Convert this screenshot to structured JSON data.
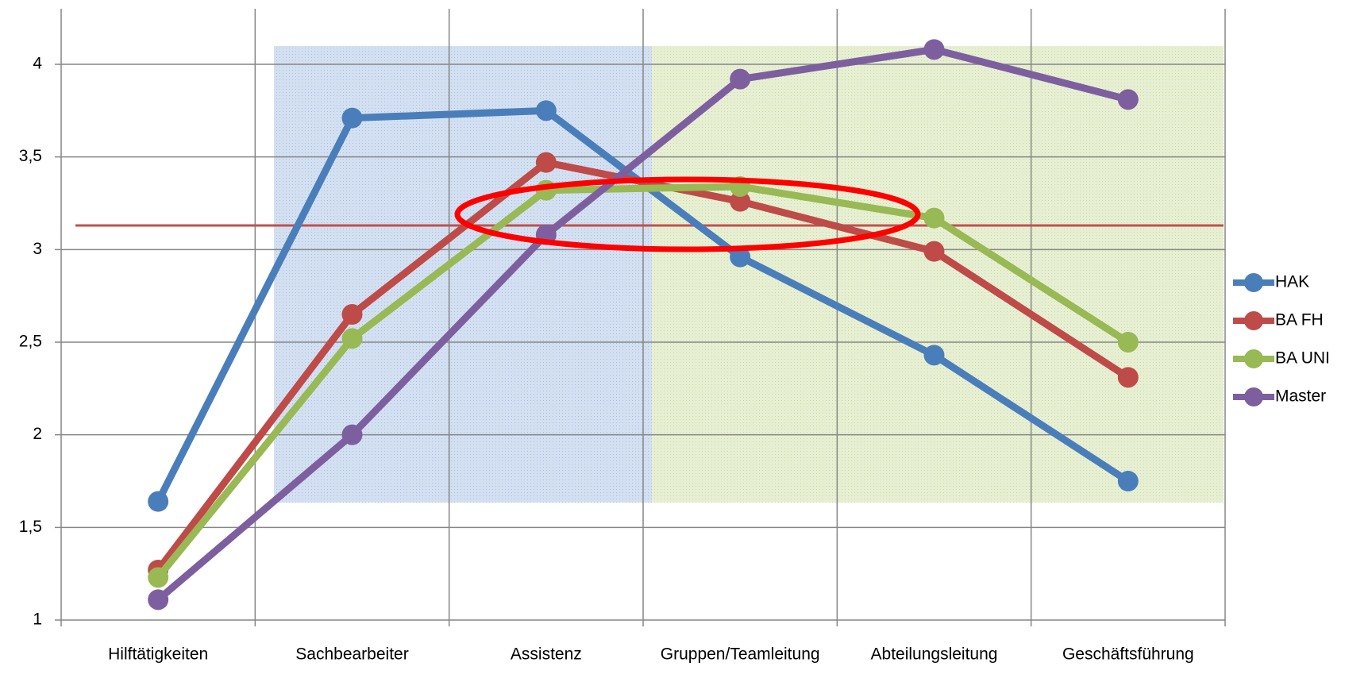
{
  "chart_data": {
    "type": "line",
    "categories": [
      "Hilftätigkeiten",
      "Sachbearbeiter",
      "Assistenz",
      "Gruppen/Teamleitung",
      "Abteilungsleitung",
      "Geschäftsführung"
    ],
    "series": [
      {
        "name": "HAK",
        "color": "#4a7ebb",
        "values": [
          1.64,
          3.71,
          3.75,
          2.96,
          2.43,
          1.75
        ]
      },
      {
        "name": "BA FH",
        "color": "#be4b48",
        "values": [
          1.27,
          2.65,
          3.47,
          3.26,
          2.99,
          2.31
        ]
      },
      {
        "name": "BA UNI",
        "color": "#98b954",
        "values": [
          1.23,
          2.52,
          3.32,
          3.34,
          3.17,
          2.5
        ]
      },
      {
        "name": "Master",
        "color": "#7d5fa0",
        "values": [
          1.11,
          2.0,
          3.08,
          3.92,
          4.08,
          3.81
        ]
      }
    ],
    "ylim": [
      1,
      4.3
    ],
    "yticks": [
      1,
      {
        "value": 1.5,
        "label": "1,5"
      },
      2,
      {
        "value": 2.5,
        "label": "2,5"
      },
      3,
      {
        "value": 3.5,
        "label": "3,5"
      },
      4
    ],
    "reference_line": 3.13,
    "grid": true,
    "legend": "right"
  }
}
